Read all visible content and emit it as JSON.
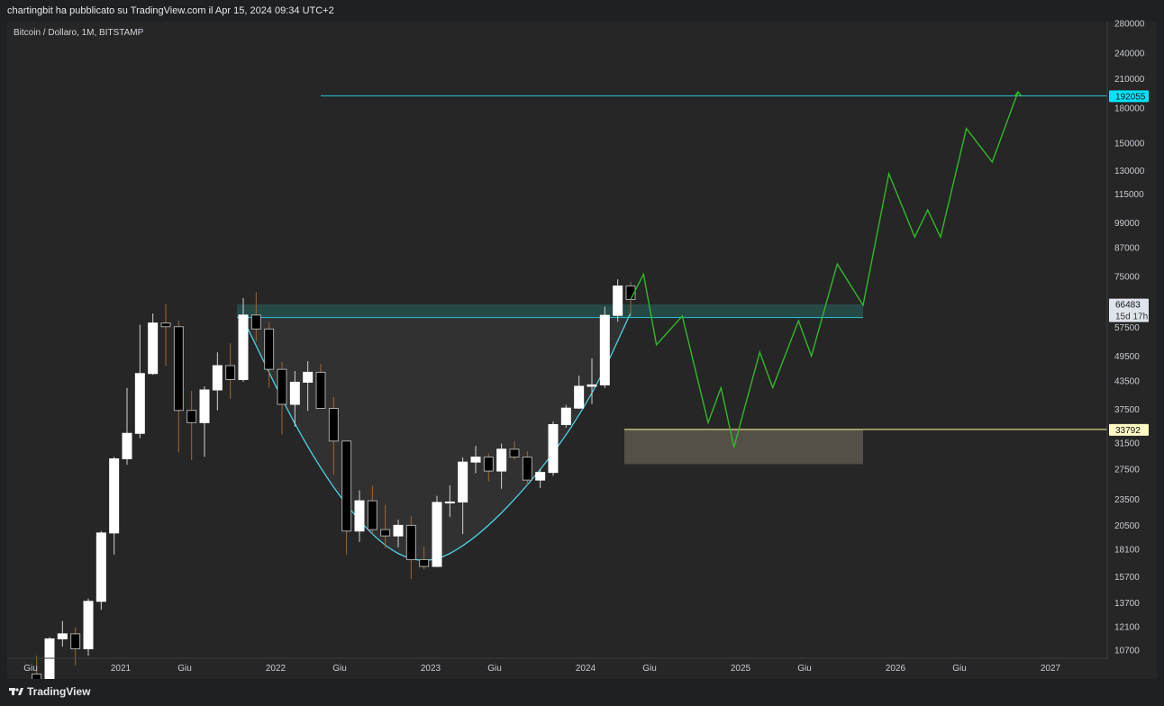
{
  "header": {
    "attribution": "chartingbit ha pubblicato su TradingView.com il Apr 15, 2024 09:34 UTC+2"
  },
  "footer": {
    "brand": "TradingView"
  },
  "chart_data": {
    "type": "candlestick",
    "symbol_label": "Bitcoin / Dollaro, 1M, BITSTAMP",
    "y_scale": "log",
    "y_ticks": [
      10700,
      12100,
      13700,
      15700,
      18100,
      20500,
      23500,
      27500,
      31500,
      37500,
      43500,
      49500,
      57500,
      75000,
      87000,
      99000,
      115000,
      130000,
      150000,
      180000,
      210000,
      240000,
      280000
    ],
    "x_ticks": [
      "Giu",
      "2021",
      "Giu",
      "2022",
      "Giu",
      "2023",
      "Giu",
      "2024",
      "Giu",
      "2025",
      "Giu",
      "2026",
      "Giu",
      "2027"
    ],
    "price_tags": [
      {
        "value": "192055",
        "color": "#00e5ff"
      },
      {
        "value": "66483",
        "sub": "15d 17h",
        "color": "#dfe3ea"
      },
      {
        "value": "33792",
        "color": "#fff9c4"
      }
    ],
    "candles": [
      [
        "2020-06",
        9450,
        10400,
        8900,
        9150
      ],
      [
        "2020-07",
        9150,
        11450,
        9000,
        11350
      ],
      [
        "2020-08",
        11350,
        12450,
        10900,
        11650
      ],
      [
        "2020-09",
        11650,
        12050,
        9900,
        10780
      ],
      [
        "2020-10",
        10780,
        14000,
        10400,
        13800
      ],
      [
        "2020-11",
        13800,
        19900,
        13200,
        19700
      ],
      [
        "2020-12",
        19700,
        29300,
        17600,
        28990
      ],
      [
        "2021-01",
        28990,
        41950,
        28100,
        33100
      ],
      [
        "2021-02",
        33100,
        58300,
        32300,
        45200
      ],
      [
        "2021-03",
        45200,
        61800,
        44900,
        58800
      ],
      [
        "2021-04",
        58800,
        64900,
        47000,
        57700
      ],
      [
        "2021-05",
        57700,
        59500,
        30000,
        37300
      ],
      [
        "2021-06",
        37300,
        41300,
        28800,
        35000
      ],
      [
        "2021-07",
        35000,
        42300,
        29300,
        41500
      ],
      [
        "2021-08",
        41500,
        50500,
        37300,
        47100
      ],
      [
        "2021-09",
        47100,
        52900,
        39600,
        43800
      ],
      [
        "2021-10",
        43800,
        67000,
        43300,
        61300
      ],
      [
        "2021-11",
        61300,
        69000,
        53500,
        57000
      ],
      [
        "2021-12",
        57000,
        59100,
        42000,
        46200
      ],
      [
        "2022-01",
        46200,
        48000,
        32900,
        38500
      ],
      [
        "2022-02",
        38500,
        45800,
        34300,
        43200
      ],
      [
        "2022-03",
        43200,
        48200,
        37200,
        45500
      ],
      [
        "2022-04",
        45500,
        47500,
        37700,
        37700
      ],
      [
        "2022-05",
        37700,
        40000,
        26700,
        31800
      ],
      [
        "2022-06",
        31800,
        31900,
        17600,
        19900
      ],
      [
        "2022-07",
        19900,
        24600,
        18800,
        23300
      ],
      [
        "2022-08",
        23300,
        25200,
        19600,
        20050
      ],
      [
        "2022-09",
        20050,
        22800,
        18200,
        19400
      ],
      [
        "2022-10",
        19400,
        21100,
        18300,
        20500
      ],
      [
        "2022-11",
        20500,
        21500,
        15500,
        17150
      ],
      [
        "2022-12",
        17150,
        18400,
        16300,
        16550
      ],
      [
        "2023-01",
        16550,
        23900,
        16500,
        23100
      ],
      [
        "2023-02",
        23100,
        25250,
        21400,
        23150
      ],
      [
        "2023-03",
        23150,
        29200,
        19600,
        28500
      ],
      [
        "2023-04",
        28500,
        31000,
        26900,
        29250
      ],
      [
        "2023-05",
        29250,
        29800,
        25800,
        27200
      ],
      [
        "2023-06",
        27200,
        31400,
        24800,
        30480
      ],
      [
        "2023-07",
        30480,
        31800,
        28850,
        29250
      ],
      [
        "2023-08",
        29250,
        30150,
        25300,
        25950
      ],
      [
        "2023-09",
        25950,
        27500,
        24900,
        27000
      ],
      [
        "2023-10",
        27000,
        35200,
        26550,
        34650
      ],
      [
        "2023-11",
        34650,
        38400,
        34100,
        37750
      ],
      [
        "2023-12",
        37750,
        44700,
        37600,
        42300
      ],
      [
        "2024-01",
        42300,
        48900,
        38550,
        42600
      ],
      [
        "2024-02",
        42600,
        64000,
        41900,
        61200
      ],
      [
        "2024-03",
        61200,
        73800,
        59200,
        71300
      ],
      [
        "2024-04",
        71300,
        72800,
        60800,
        66483
      ]
    ],
    "projection_path": [
      [
        "2024-04",
        66483
      ],
      [
        "2024-05",
        75800
      ],
      [
        "2024-06",
        52500
      ],
      [
        "2024-08",
        61000
      ],
      [
        "2024-10",
        35000
      ],
      [
        "2024-11",
        42000
      ],
      [
        "2024-12",
        30800
      ],
      [
        "2025-02",
        50500
      ],
      [
        "2025-03",
        42000
      ],
      [
        "2025-05",
        59500
      ],
      [
        "2025-06",
        49500
      ],
      [
        "2025-08",
        80000
      ],
      [
        "2025-10",
        64500
      ],
      [
        "2025-12",
        128000
      ],
      [
        "2026-02",
        92000
      ],
      [
        "2026-03",
        106000
      ],
      [
        "2026-04",
        92000
      ],
      [
        "2026-06",
        162000
      ],
      [
        "2026-08",
        136000
      ],
      [
        "2026-10",
        196000
      ]
    ],
    "cup_curve": [
      [
        "2021-10",
        60000
      ],
      [
        "2022-03",
        30000
      ],
      [
        "2022-08",
        19000
      ],
      [
        "2022-12",
        16500
      ],
      [
        "2023-04",
        19000
      ],
      [
        "2023-09",
        27000
      ],
      [
        "2024-01",
        40000
      ],
      [
        "2024-04",
        62000
      ]
    ],
    "levels": [
      {
        "value": 192055,
        "from": "2022-04",
        "color": "#26c6da"
      },
      {
        "value": 60500,
        "from": "2021-10",
        "to": "2025-10",
        "color": "#26c6da"
      },
      {
        "value": 33792,
        "from": "2024-04",
        "color": "#fff59d"
      }
    ],
    "zones": [
      {
        "from": "2021-10",
        "to": "2025-10",
        "low": 60500,
        "high": 64800,
        "color": "#26a69a"
      },
      {
        "from": "2024-04",
        "to": "2025-10",
        "low": 28200,
        "high": 33792,
        "color": "#8d8470"
      }
    ],
    "colors": {
      "up": "#ffffff",
      "down": "#000000",
      "down_border": "#aaaaaa",
      "wick_up": "#cfd3da",
      "wick_down": "#a1662f",
      "projection": "#31b92a",
      "curve": "#4dd0e1"
    }
  }
}
